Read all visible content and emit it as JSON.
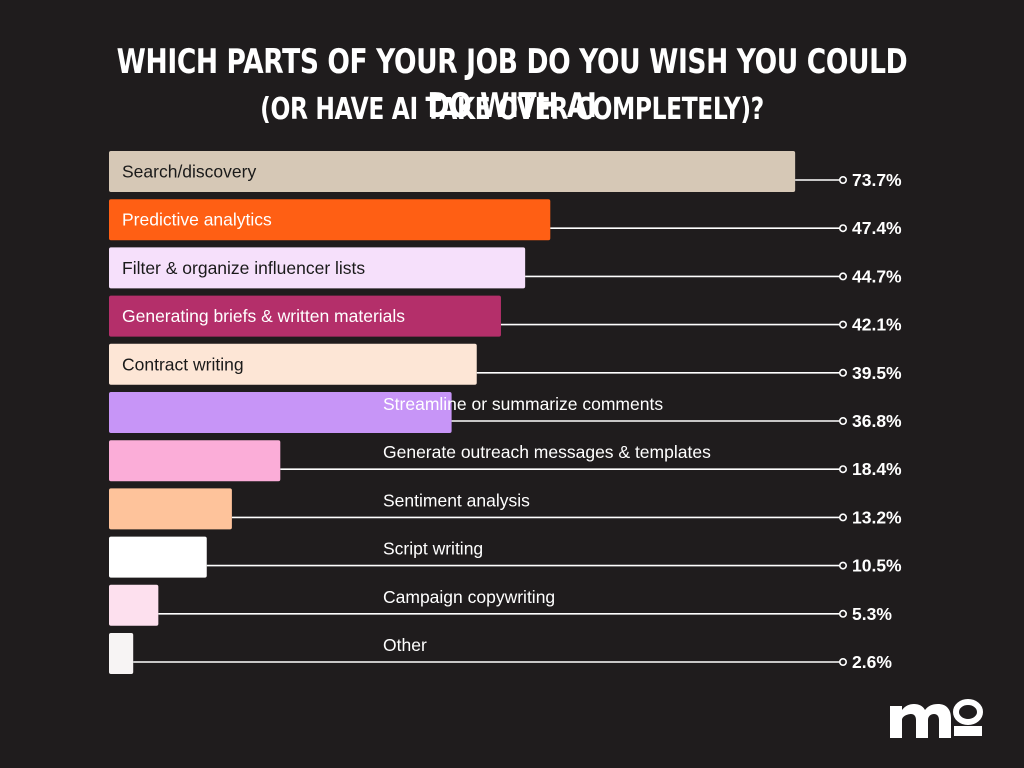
{
  "title_line1": "WHICH PARTS OF YOUR JOB DO YOU WISH YOU COULD DO WITH AI",
  "title_line2": "(OR HAVE AI TAKE OVER COMPLETELY)?",
  "logo_text": "mo",
  "chart_data": {
    "type": "bar",
    "orientation": "horizontal",
    "xlim": [
      0,
      100
    ],
    "grid": false,
    "legend": "none",
    "categories": [
      "Search/discovery",
      "Predictive analytics",
      "Filter & organize influencer lists",
      "Generating briefs & written materials",
      "Contract writing",
      "Streamline or summarize comments",
      "Generate outreach messages & templates",
      "Sentiment analysis",
      "Script writing",
      "Campaign copywriting",
      "Other"
    ],
    "values": [
      73.7,
      47.4,
      44.7,
      42.1,
      39.5,
      36.8,
      18.4,
      13.2,
      10.5,
      5.3,
      2.6
    ],
    "value_labels": [
      "73.7%",
      "47.4%",
      "44.7%",
      "42.1%",
      "39.5%",
      "36.8%",
      "18.4%",
      "13.2%",
      "10.5%",
      "5.3%",
      "2.6%"
    ],
    "colors": [
      "#d6c8b6",
      "#ff5f14",
      "#f6e0fb",
      "#b42f6a",
      "#fde6d6",
      "#c795f7",
      "#fbadd8",
      "#fec39b",
      "#ffffff",
      "#fde0ee",
      "#f7f4f4"
    ],
    "label_colors": [
      "#1a1a1a",
      "#ffffff",
      "#1a1a1a",
      "#ffffff",
      "#1a1a1a",
      "#ffffff",
      "#ffffff",
      "#ffffff",
      "#ffffff",
      "#ffffff",
      "#ffffff"
    ]
  }
}
